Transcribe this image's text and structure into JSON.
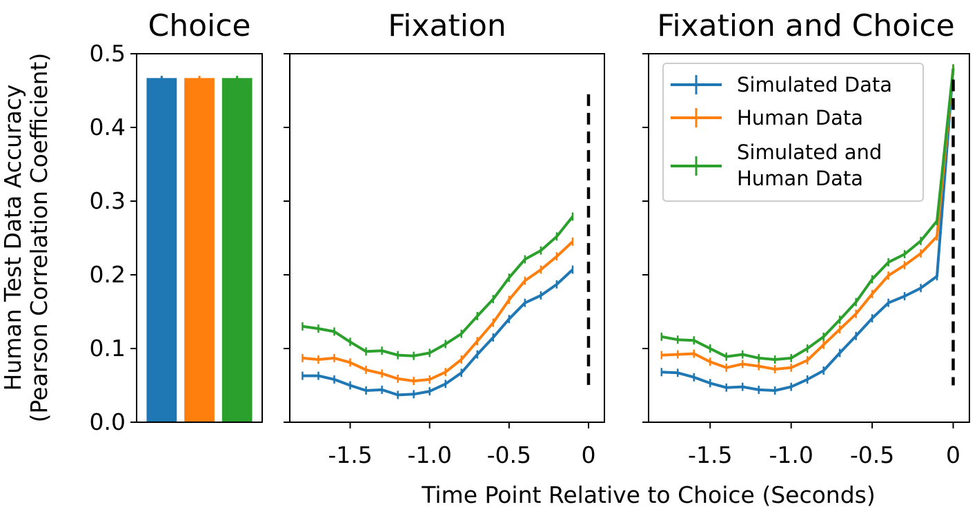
{
  "figure": {
    "ylabel_line1": "Human Test Data Accuracy",
    "ylabel_line2": "(Pearson Correlation Coefficient)",
    "xlabel": "Time Point Relative to Choice (Seconds)"
  },
  "colors": {
    "blue": "#1f77b4",
    "orange": "#ff7f0e",
    "green": "#2ca02c",
    "black": "#000000"
  },
  "chart_data": [
    {
      "type": "bar",
      "title": "Choice",
      "categories": [
        "Simulated Data",
        "Human Data",
        "Simulated and Human Data"
      ],
      "values": [
        0.467,
        0.467,
        0.467
      ],
      "errors": [
        0.003,
        0.003,
        0.003
      ],
      "ylim": [
        0,
        0.5
      ],
      "yticks": [
        "0.0",
        "0.1",
        "0.2",
        "0.3",
        "0.4",
        "0.5"
      ]
    },
    {
      "type": "line",
      "title": "Fixation",
      "xlim": [
        -1.88,
        0.1
      ],
      "ylim": [
        0,
        0.5
      ],
      "xticks": [
        -1.5,
        -1.0,
        -0.5,
        0
      ],
      "xtick_labels": [
        "-1.5",
        "-1.0",
        "-0.5",
        "0"
      ],
      "vline": {
        "x": 0,
        "y_range": [
          0.05,
          0.445
        ],
        "style": "dashed"
      },
      "x": [
        -1.8,
        -1.7,
        -1.6,
        -1.5,
        -1.4,
        -1.3,
        -1.2,
        -1.1,
        -1.0,
        -0.9,
        -0.8,
        -0.7,
        -0.6,
        -0.5,
        -0.4,
        -0.3,
        -0.2,
        -0.1
      ],
      "series": [
        {
          "name": "Simulated Data",
          "color": "blue",
          "values": [
            0.063,
            0.063,
            0.058,
            0.05,
            0.043,
            0.044,
            0.037,
            0.038,
            0.042,
            0.052,
            0.067,
            0.092,
            0.115,
            0.14,
            0.162,
            0.172,
            0.187,
            0.207
          ]
        },
        {
          "name": "Human Data",
          "color": "orange",
          "values": [
            0.087,
            0.085,
            0.087,
            0.081,
            0.071,
            0.066,
            0.059,
            0.056,
            0.058,
            0.068,
            0.085,
            0.11,
            0.135,
            0.166,
            0.192,
            0.207,
            0.225,
            0.245
          ]
        },
        {
          "name": "Simulated and Human Data",
          "color": "green",
          "values": [
            0.13,
            0.127,
            0.123,
            0.109,
            0.096,
            0.097,
            0.091,
            0.09,
            0.094,
            0.106,
            0.12,
            0.144,
            0.167,
            0.196,
            0.221,
            0.233,
            0.252,
            0.279
          ]
        }
      ]
    },
    {
      "type": "line",
      "title": "Fixation and Choice",
      "xlim": [
        -1.88,
        0.1
      ],
      "ylim": [
        0,
        0.5
      ],
      "xticks": [
        -1.5,
        -1.0,
        -0.5,
        0
      ],
      "xtick_labels": [
        "-1.5",
        "-1.0",
        "-0.5",
        "0"
      ],
      "vline": {
        "x": 0,
        "y_range": [
          0.05,
          0.465
        ],
        "style": "dashed"
      },
      "x": [
        -1.8,
        -1.7,
        -1.6,
        -1.5,
        -1.4,
        -1.3,
        -1.2,
        -1.1,
        -1.0,
        -0.9,
        -0.8,
        -0.7,
        -0.6,
        -0.5,
        -0.4,
        -0.3,
        -0.2,
        -0.1,
        0.0
      ],
      "series": [
        {
          "name": "Simulated Data",
          "color": "blue",
          "values": [
            0.068,
            0.067,
            0.061,
            0.053,
            0.047,
            0.048,
            0.044,
            0.043,
            0.048,
            0.058,
            0.07,
            0.094,
            0.117,
            0.141,
            0.162,
            0.171,
            0.182,
            0.198,
            0.48
          ]
        },
        {
          "name": "Human Data",
          "color": "orange",
          "values": [
            0.091,
            0.092,
            0.093,
            0.082,
            0.074,
            0.079,
            0.076,
            0.072,
            0.074,
            0.084,
            0.105,
            0.126,
            0.147,
            0.174,
            0.199,
            0.213,
            0.229,
            0.252,
            0.48
          ]
        },
        {
          "name": "Simulated and Human Data",
          "color": "green",
          "values": [
            0.116,
            0.112,
            0.111,
            0.1,
            0.089,
            0.092,
            0.087,
            0.085,
            0.087,
            0.1,
            0.116,
            0.139,
            0.163,
            0.194,
            0.217,
            0.228,
            0.246,
            0.273,
            0.48
          ]
        }
      ],
      "legend": {
        "placement": "top-left",
        "entries": [
          {
            "lines": [
              "Simulated Data"
            ],
            "color": "blue"
          },
          {
            "lines": [
              "Human Data"
            ],
            "color": "orange"
          },
          {
            "lines": [
              "Simulated and",
              "Human Data"
            ],
            "color": "green"
          }
        ]
      }
    }
  ]
}
